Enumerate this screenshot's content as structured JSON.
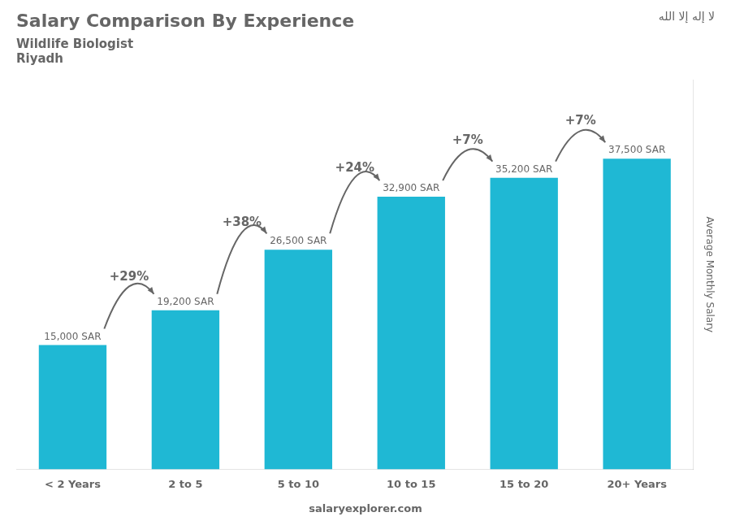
{
  "chart_data": {
    "type": "bar",
    "title": "Salary Comparison By Experience",
    "subtitle": [
      "Wildlife Biologist",
      "Riyadh"
    ],
    "ylabel": "Average Monthly Salary",
    "categories": [
      "< 2 Years",
      "2 to 5",
      "5 to 10",
      "10 to 15",
      "15 to 20",
      "20+ Years"
    ],
    "values": [
      15000,
      19200,
      26500,
      32900,
      35200,
      37500
    ],
    "value_labels": [
      "15,000 SAR",
      "19,200 SAR",
      "26,500 SAR",
      "32,900 SAR",
      "35,200 SAR",
      "37,500 SAR"
    ],
    "data_labels": true,
    "color": "#1fb8d4",
    "ylim": [
      0,
      47000
    ],
    "tick_labels": "x",
    "grid": false,
    "annotations": [
      {
        "text": "salaryexplorer.com"
      },
      {
        "text": "لا إله إلا الله"
      },
      {
        "text": "+29%",
        "from": "< 2 Years",
        "to": "2 to 5"
      },
      {
        "text": "+38%",
        "from": "2 to 5",
        "to": "5 to 10"
      },
      {
        "text": "+24%",
        "from": "5 to 10",
        "to": "10 to 15"
      },
      {
        "text": "+7%",
        "from": "10 to 15",
        "to": "15 to 20"
      },
      {
        "text": "+7%",
        "from": "15 to 20",
        "to": "20+ Years"
      }
    ]
  }
}
